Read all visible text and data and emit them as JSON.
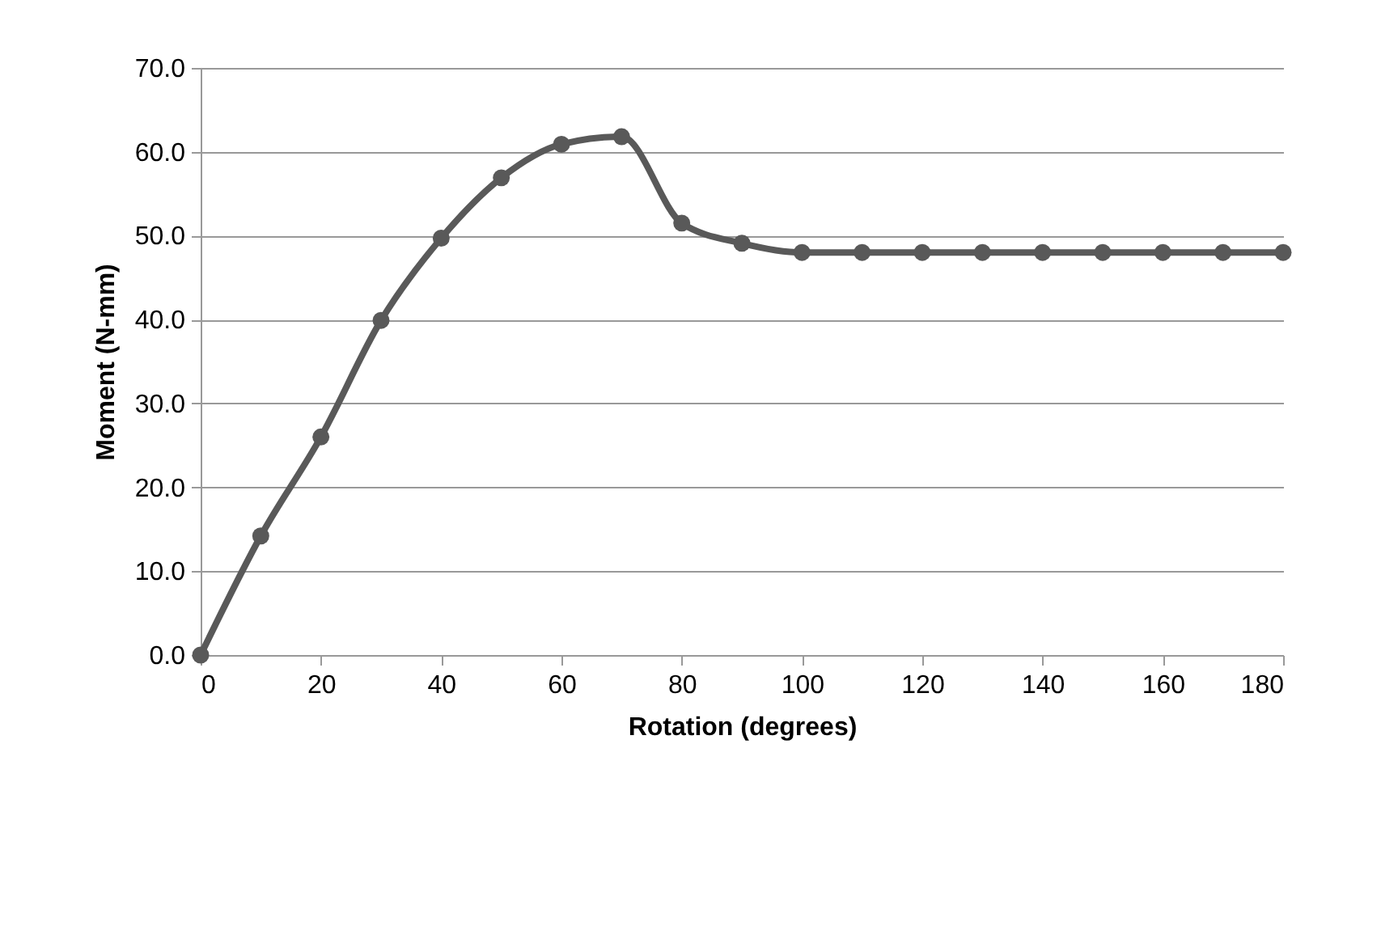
{
  "chart_data": {
    "type": "line",
    "xlabel": "Rotation (degrees)",
    "ylabel": "Moment (N-mm)",
    "x": [
      0,
      10,
      20,
      30,
      40,
      50,
      60,
      70,
      80,
      90,
      100,
      110,
      120,
      130,
      140,
      150,
      160,
      170,
      180
    ],
    "series": [
      {
        "color": "#595959",
        "values": [
          0,
          14.2,
          26.0,
          39.9,
          49.7,
          56.9,
          60.9,
          61.8,
          51.5,
          49.1,
          48.0,
          48.0,
          48.0,
          48.0,
          48.0,
          48.0,
          48.0,
          48.0,
          48.0
        ]
      }
    ],
    "xlim": [
      0,
      180
    ],
    "xticks": [
      0,
      20,
      40,
      60,
      80,
      100,
      120,
      140,
      160,
      180
    ],
    "ylim": [
      0,
      70
    ],
    "yticks": [
      {
        "value": 0,
        "label": "0.0"
      },
      {
        "value": 10,
        "label": "10.0"
      },
      {
        "value": 20,
        "label": "20.0"
      },
      {
        "value": 30,
        "label": "30.0"
      },
      {
        "value": 40,
        "label": "40.0"
      },
      {
        "value": 50,
        "label": "50.0"
      },
      {
        "value": 60,
        "label": "60.0"
      },
      {
        "value": 70,
        "label": "70.0"
      }
    ],
    "grid": "y",
    "marker": "circle",
    "line_style": "solid",
    "legend": false
  }
}
